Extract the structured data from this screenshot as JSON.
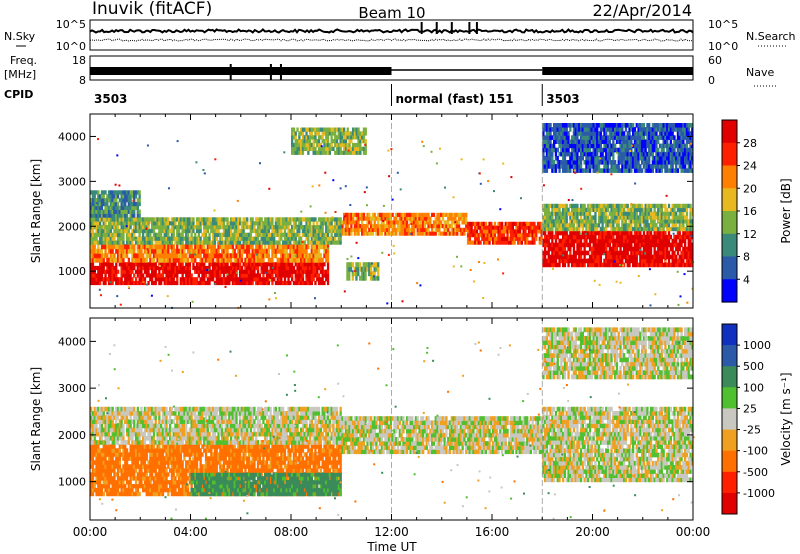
{
  "header": {
    "station": "Inuvik (fitACF)",
    "beam": "Beam 10",
    "date": "22/Apr/2014"
  },
  "top_panels": {
    "nsky_label": "N.Sky",
    "nsky_ticks": [
      "10^5",
      "10^0"
    ],
    "nsearch_label": "N.Search",
    "nsearch_ticks": [
      "10^5",
      "10^0"
    ],
    "freq_label": "Freq.",
    "freq_unit": "[MHz]",
    "freq_ticks": [
      "18",
      "8"
    ],
    "nave_label": "Nave",
    "nave_ticks": [
      "60",
      "0"
    ],
    "cpid_label": "CPID",
    "cpid_segments": [
      {
        "label": "3503",
        "start_hour": 0
      },
      {
        "label": "normal (fast) 151",
        "start_hour": 12
      },
      {
        "label": "3503",
        "start_hour": 18
      }
    ]
  },
  "chart_data": [
    {
      "type": "heatmap",
      "quantity": "Power",
      "ylabel": "Slant Range [km]",
      "xlabel": "",
      "xlim_hours": [
        0,
        24
      ],
      "ylim": [
        180,
        4500
      ],
      "yticks": [
        "1000",
        "2000",
        "3000",
        "4000"
      ],
      "colorbar": {
        "label": "Power [dB]",
        "ticks": [
          "4",
          "8",
          "12",
          "16",
          "20",
          "24",
          "28"
        ],
        "colors": [
          "#0000ff",
          "#2a5aa8",
          "#3a8a7a",
          "#7ab040",
          "#e8b820",
          "#ff8000",
          "#ff2000",
          "#e00000"
        ]
      },
      "bands": [
        {
          "t0": 0.0,
          "t1": 9.5,
          "r0": 700,
          "r1": 1200,
          "level": 28
        },
        {
          "t0": 0.0,
          "t1": 9.5,
          "r0": 1200,
          "r1": 1600,
          "level": 20
        },
        {
          "t0": 0.0,
          "t1": 10.0,
          "r0": 1600,
          "r1": 2200,
          "level": 12
        },
        {
          "t0": 0.0,
          "t1": 2.0,
          "r0": 2200,
          "r1": 2800,
          "level": 8
        },
        {
          "t0": 10.0,
          "t1": 15.0,
          "r0": 1800,
          "r1": 2300,
          "level": 20
        },
        {
          "t0": 15.0,
          "t1": 18.0,
          "r0": 1600,
          "r1": 2100,
          "level": 24
        },
        {
          "t0": 18.0,
          "t1": 24.0,
          "r0": 1100,
          "r1": 1900,
          "level": 28
        },
        {
          "t0": 18.0,
          "t1": 24.0,
          "r0": 1900,
          "r1": 2500,
          "level": 12
        },
        {
          "t0": 10.2,
          "t1": 11.5,
          "r0": 800,
          "r1": 1200,
          "level": 12
        },
        {
          "t0": 18.0,
          "t1": 24.0,
          "r0": 3200,
          "r1": 4300,
          "level": 4
        },
        {
          "t0": 8.0,
          "t1": 11.0,
          "r0": 3600,
          "r1": 4200,
          "level": 12
        }
      ]
    },
    {
      "type": "heatmap",
      "quantity": "Velocity",
      "ylabel": "Slant Range [km]",
      "xlabel": "Time UT",
      "xlim_hours": [
        0,
        24
      ],
      "ylim": [
        180,
        4500
      ],
      "xticks": [
        "00:00",
        "04:00",
        "08:00",
        "12:00",
        "16:00",
        "20:00",
        "00:00"
      ],
      "yticks": [
        "1000",
        "2000",
        "3000",
        "4000"
      ],
      "colorbar": {
        "label": "Velocity [m s⁻¹]",
        "ticks": [
          "1000",
          "500",
          "100",
          "25",
          "-25",
          "-100",
          "-500",
          "-1000"
        ],
        "colors": [
          "#1030c0",
          "#2a5aa8",
          "#3a8a5a",
          "#50c030",
          "#c8c8c0",
          "#f0a020",
          "#ff7000",
          "#ff2000",
          "#e00000"
        ]
      },
      "bands": [
        {
          "t0": 0.0,
          "t1": 10.0,
          "r0": 700,
          "r1": 1200,
          "level": -100
        },
        {
          "t0": 4.0,
          "t1": 10.0,
          "r0": 700,
          "r1": 1200,
          "level": 100
        },
        {
          "t0": 0.0,
          "t1": 10.0,
          "r0": 1200,
          "r1": 1800,
          "level": -100
        },
        {
          "t0": 0.0,
          "t1": 10.0,
          "r0": 1800,
          "r1": 2600,
          "level": 0
        },
        {
          "t0": 10.0,
          "t1": 18.0,
          "r0": 1600,
          "r1": 2400,
          "level": 0
        },
        {
          "t0": 18.0,
          "t1": 24.0,
          "r0": 1000,
          "r1": 2600,
          "level": 0
        },
        {
          "t0": 18.0,
          "t1": 24.0,
          "r0": 3200,
          "r1": 4300,
          "level": 0
        }
      ]
    }
  ]
}
